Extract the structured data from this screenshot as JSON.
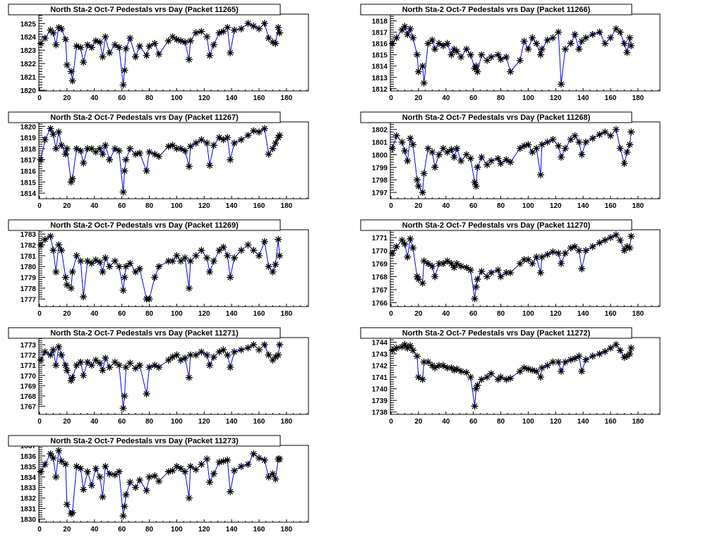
{
  "chart_data": [
    {
      "type": "line",
      "title": "North Sta-2 Oct-7 Pedestals vrs Day (Packet 11265)",
      "xlabel": "",
      "ylabel": "",
      "xlim": [
        0,
        196
      ],
      "ylim": [
        1819.95,
        1825.7
      ],
      "xticks": [
        0,
        20,
        40,
        60,
        80,
        100,
        120,
        140,
        160,
        180
      ],
      "yticks": [
        1820,
        1821,
        1822,
        1823,
        1824,
        1825
      ],
      "values": [
        1823.5,
        1823.9,
        1824.5,
        1824.3,
        1823.4,
        1824.7,
        1824.6,
        1823.8,
        1821.9,
        1821.4,
        1820.7,
        1823.3,
        1823.2,
        1822.1,
        1823.4,
        1823.2,
        1823.7,
        1823.6,
        1822.5,
        1824.0,
        1822.8,
        1823.4,
        1823.2,
        1820.4,
        1821.5,
        1823.1,
        1823.9,
        1822.5,
        1823.3,
        1822.6,
        1823.3,
        1823.5,
        1822.7,
        1823.7,
        1824.0,
        1823.8,
        1823.7,
        1823.6,
        1822.3,
        1823.7,
        1824.3,
        1824.4,
        1824.0,
        1822.6,
        1823.4,
        1824.3,
        1824.4,
        1824.7,
        1822.8,
        1824.5,
        1824.6,
        1825.0,
        1824.8,
        1824.6,
        1825.0,
        1823.9,
        1823.6,
        1823.5,
        1824.7,
        1824.3
      ]
    },
    {
      "type": "line",
      "title": "North Sta-2 Oct-7 Pedestals vrs Day (Packet 11266)",
      "xlabel": "",
      "ylabel": "",
      "xlim": [
        0,
        196
      ],
      "ylim": [
        1811.8,
        1818.6
      ],
      "xticks": [
        0,
        20,
        40,
        60,
        80,
        100,
        120,
        140,
        160,
        180
      ],
      "yticks": [
        1812,
        1813,
        1814,
        1815,
        1816,
        1817,
        1818
      ],
      "values": [
        1816.0,
        1816.5,
        1817.2,
        1817.5,
        1816.8,
        1817.3,
        1816.5,
        1815.0,
        1813.5,
        1814.0,
        1812.5,
        1816.0,
        1816.3,
        1815.5,
        1816.0,
        1815.8,
        1816.0,
        1815.0,
        1815.5,
        1815.3,
        1814.8,
        1815.5,
        1815.0,
        1813.8,
        1814.0,
        1813.5,
        1815.0,
        1814.5,
        1814.8,
        1815.0,
        1814.6,
        1814.8,
        1813.5,
        1814.5,
        1816.2,
        1815.5,
        1816.5,
        1816.0,
        1815.0,
        1815.5,
        1816.3,
        1816.5,
        1817.0,
        1812.4,
        1815.5,
        1816.0,
        1816.8,
        1815.5,
        1816.2,
        1816.5,
        1816.8,
        1817.0,
        1816.0,
        1816.5,
        1817.3,
        1817.0,
        1816.0,
        1815.2,
        1816.5,
        1815.8
      ]
    },
    {
      "type": "line",
      "title": "North Sta-2 Oct-7 Pedestals vrs Day (Packet 11267)",
      "xlabel": "",
      "ylabel": "",
      "xlim": [
        0,
        196
      ],
      "ylim": [
        1813.5,
        1820.4
      ],
      "xticks": [
        0,
        20,
        40,
        60,
        80,
        100,
        120,
        140,
        160,
        180
      ],
      "yticks": [
        1814,
        1815,
        1816,
        1817,
        1818,
        1819,
        1820
      ],
      "values": [
        1817.0,
        1818.8,
        1819.8,
        1819.3,
        1818.0,
        1819.5,
        1818.3,
        1817.5,
        1818.0,
        1815.0,
        1815.3,
        1818.0,
        1817.8,
        1816.7,
        1818.0,
        1818.0,
        1817.7,
        1818.0,
        1817.5,
        1818.3,
        1817.0,
        1818.0,
        1817.8,
        1814.1,
        1816.0,
        1817.0,
        1818.0,
        1817.5,
        1817.6,
        1816.0,
        1817.7,
        1817.5,
        1817.3,
        1818.2,
        1818.3,
        1818.0,
        1818.0,
        1817.8,
        1816.4,
        1818.2,
        1818.5,
        1818.8,
        1818.5,
        1816.5,
        1818.3,
        1819.0,
        1818.8,
        1819.0,
        1817.0,
        1818.5,
        1818.8,
        1819.2,
        1819.6,
        1819.5,
        1819.8,
        1817.5,
        1818.0,
        1818.5,
        1819.0,
        1819.2
      ]
    },
    {
      "type": "line",
      "title": "North Sta-2 Oct-7 Pedestals vrs Day (Packet 11268)",
      "xlabel": "",
      "ylabel": "",
      "xlim": [
        0,
        196
      ],
      "ylim": [
        1796.5,
        1802.6
      ],
      "xticks": [
        0,
        20,
        40,
        60,
        80,
        100,
        120,
        140,
        160,
        180
      ],
      "yticks": [
        1797,
        1798,
        1799,
        1800,
        1801,
        1802
      ],
      "values": [
        1800.5,
        1801.5,
        1801.0,
        1800.3,
        1799.5,
        1801.3,
        1800.8,
        1798.0,
        1797.5,
        1797.0,
        1798.5,
        1800.5,
        1800.2,
        1799.0,
        1800.0,
        1800.5,
        1800.2,
        1800.4,
        1799.8,
        1800.5,
        1799.5,
        1800.0,
        1799.7,
        1797.8,
        1797.5,
        1799.0,
        1799.8,
        1799.2,
        1799.5,
        1799.7,
        1799.3,
        1799.6,
        1799.4,
        1800.5,
        1800.7,
        1800.8,
        1800.2,
        1800.5,
        1798.4,
        1800.8,
        1801.0,
        1801.2,
        1800.7,
        1799.8,
        1800.5,
        1801.2,
        1801.5,
        1801.0,
        1800.0,
        1801.0,
        1801.3,
        1801.6,
        1801.8,
        1801.5,
        1802.0,
        1800.5,
        1799.3,
        1800.2,
        1800.8,
        1801.8
      ]
    },
    {
      "type": "line",
      "title": "North Sta-2 Oct-7 Pedestals vrs Day (Packet 11269)",
      "xlabel": "",
      "ylabel": "",
      "xlim": [
        0,
        196
      ],
      "ylim": [
        1776.3,
        1783.4
      ],
      "xticks": [
        0,
        20,
        40,
        60,
        80,
        100,
        120,
        140,
        160,
        180
      ],
      "yticks": [
        1777,
        1778,
        1779,
        1780,
        1781,
        1782,
        1783
      ],
      "values": [
        1782.0,
        1782.5,
        1782.8,
        1781.5,
        1779.5,
        1782.0,
        1781.5,
        1779.0,
        1778.3,
        1778.0,
        1779.5,
        1781.0,
        1780.5,
        1777.2,
        1780.5,
        1780.3,
        1780.6,
        1780.4,
        1779.5,
        1780.8,
        1780.0,
        1780.5,
        1780.0,
        1777.8,
        1779.0,
        1780.0,
        1780.3,
        1779.5,
        1779.8,
        1777.0,
        1777.0,
        1779.0,
        1780.0,
        1780.5,
        1780.5,
        1781.0,
        1780.5,
        1780.8,
        1778.0,
        1780.5,
        1781.0,
        1781.5,
        1780.8,
        1779.5,
        1780.5,
        1781.5,
        1781.8,
        1781.0,
        1779.0,
        1780.8,
        1781.5,
        1782.0,
        1781.5,
        1781.0,
        1782.3,
        1780.0,
        1779.5,
        1780.2,
        1782.5,
        1781.0
      ]
    },
    {
      "type": "line",
      "title": "North Sta-2 Oct-7 Pedestals vrs Day (Packet 11270)",
      "xlabel": "",
      "ylabel": "",
      "xlim": [
        0,
        196
      ],
      "ylim": [
        1765.7,
        1771.6
      ],
      "xticks": [
        0,
        20,
        40,
        60,
        80,
        100,
        120,
        140,
        160,
        180
      ],
      "yticks": [
        1766,
        1767,
        1768,
        1769,
        1770,
        1771
      ],
      "values": [
        1769.8,
        1770.3,
        1770.8,
        1770.5,
        1769.5,
        1770.9,
        1770.2,
        1768.0,
        1767.8,
        1767.5,
        1769.2,
        1769.0,
        1768.8,
        1768.0,
        1769.0,
        1769.0,
        1769.2,
        1769.0,
        1768.7,
        1769.0,
        1768.8,
        1768.7,
        1768.5,
        1766.3,
        1767.2,
        1767.8,
        1768.4,
        1768.0,
        1768.3,
        1768.5,
        1768.0,
        1768.3,
        1768.3,
        1769.0,
        1769.3,
        1769.3,
        1769.0,
        1769.5,
        1768.3,
        1769.5,
        1769.7,
        1769.9,
        1769.8,
        1769.0,
        1769.8,
        1770.2,
        1770.3,
        1770.0,
        1768.6,
        1770.0,
        1770.3,
        1770.6,
        1770.8,
        1771.0,
        1771.2,
        1770.8,
        1770.0,
        1770.3,
        1770.2,
        1771.1
      ]
    },
    {
      "type": "line",
      "title": "North Sta-2 Oct-7 Pedestals vrs Day (Packet 11271)",
      "xlabel": "",
      "ylabel": "",
      "xlim": [
        0,
        196
      ],
      "ylim": [
        1766.2,
        1773.7
      ],
      "xticks": [
        0,
        20,
        40,
        60,
        80,
        100,
        120,
        140,
        160,
        180
      ],
      "yticks": [
        1767,
        1768,
        1769,
        1770,
        1771,
        1772,
        1773
      ],
      "values": [
        1771.5,
        1772.3,
        1772.0,
        1772.5,
        1771.0,
        1772.8,
        1772.0,
        1771.0,
        1770.5,
        1769.5,
        1769.8,
        1771.0,
        1771.3,
        1770.0,
        1771.3,
        1771.0,
        1771.5,
        1771.2,
        1770.5,
        1771.7,
        1770.8,
        1771.3,
        1771.0,
        1766.8,
        1768.0,
        1770.8,
        1771.2,
        1770.7,
        1771.0,
        1768.2,
        1770.8,
        1771.0,
        1770.8,
        1771.5,
        1771.8,
        1772.0,
        1771.5,
        1771.7,
        1769.8,
        1772.0,
        1772.0,
        1772.3,
        1772.0,
        1771.0,
        1771.8,
        1772.3,
        1772.5,
        1772.0,
        1770.8,
        1772.3,
        1772.5,
        1772.7,
        1773.0,
        1772.5,
        1773.0,
        1772.0,
        1771.5,
        1771.8,
        1772.0,
        1773.0
      ]
    },
    {
      "type": "line",
      "title": "North Sta-2 Oct-7 Pedestals vrs Day (Packet 11272)",
      "xlabel": "",
      "ylabel": "",
      "xlim": [
        0,
        196
      ],
      "ylim": [
        1737.8,
        1744.4
      ],
      "xticks": [
        0,
        20,
        40,
        60,
        80,
        100,
        120,
        140,
        160,
        180
      ],
      "yticks": [
        1738,
        1739,
        1740,
        1741,
        1742,
        1743,
        1744
      ],
      "values": [
        1743.3,
        1743.5,
        1743.6,
        1743.8,
        1743.5,
        1743.7,
        1743.3,
        1742.8,
        1741.0,
        1740.8,
        1742.3,
        1742.3,
        1742.0,
        1741.8,
        1742.0,
        1742.0,
        1741.8,
        1741.8,
        1741.6,
        1741.7,
        1741.5,
        1741.4,
        1741.0,
        1738.5,
        1740.0,
        1740.3,
        1740.8,
        1741.0,
        1741.3,
        1740.8,
        1741.0,
        1740.8,
        1740.9,
        1741.5,
        1741.8,
        1741.7,
        1741.6,
        1741.5,
        1741.0,
        1741.8,
        1742.0,
        1742.3,
        1742.3,
        1741.5,
        1742.3,
        1742.5,
        1742.6,
        1742.8,
        1741.5,
        1742.5,
        1742.8,
        1743.0,
        1743.2,
        1743.5,
        1743.8,
        1743.3,
        1742.7,
        1742.8,
        1743.0,
        1743.5
      ]
    },
    {
      "type": "line",
      "title": "North Sta-2 Oct-7 Pedestals vrs Day (Packet 11273)",
      "xlabel": "",
      "ylabel": "",
      "xlim": [
        0,
        196
      ],
      "ylim": [
        1829.7,
        1837.0
      ],
      "xticks": [
        0,
        20,
        40,
        60,
        80,
        100,
        120,
        140,
        160,
        180
      ],
      "yticks": [
        1830,
        1831,
        1832,
        1833,
        1834,
        1835,
        1836,
        1837
      ],
      "values": [
        1834.5,
        1835.2,
        1836.2,
        1835.8,
        1834.0,
        1836.5,
        1835.5,
        1835.2,
        1831.4,
        1830.5,
        1830.6,
        1835.0,
        1834.8,
        1832.8,
        1834.5,
        1833.2,
        1834.8,
        1834.0,
        1832.1,
        1835.0,
        1834.3,
        1834.2,
        1834.5,
        1830.3,
        1831.2,
        1832.3,
        1833.5,
        1833.0,
        1833.7,
        1832.7,
        1834.0,
        1834.1,
        1833.6,
        1834.5,
        1834.6,
        1835.0,
        1834.8,
        1834.5,
        1832.0,
        1835.0,
        1834.7,
        1835.2,
        1835.7,
        1833.5,
        1834.3,
        1835.4,
        1835.5,
        1835.6,
        1832.6,
        1834.6,
        1835.0,
        1835.2,
        1836.2,
        1835.8,
        1835.6,
        1834.0,
        1834.3,
        1833.8,
        1835.7,
        1835.7
      ]
    }
  ],
  "shared_x": [
    1,
    4,
    8,
    10,
    12,
    14,
    16,
    19,
    20,
    23,
    24,
    27,
    30,
    32,
    35,
    38,
    41,
    44,
    46,
    48,
    51,
    55,
    58,
    61,
    62,
    63,
    66,
    70,
    73,
    78,
    80,
    84,
    87,
    94,
    97,
    100,
    103,
    106,
    109,
    110,
    114,
    118,
    122,
    124,
    127,
    131,
    134,
    137,
    139,
    142,
    147,
    152,
    156,
    160,
    164,
    167,
    170,
    172,
    174,
    175
  ],
  "colors": {
    "line": "#0000ff",
    "marker": "#000000",
    "frame": "#000000"
  }
}
